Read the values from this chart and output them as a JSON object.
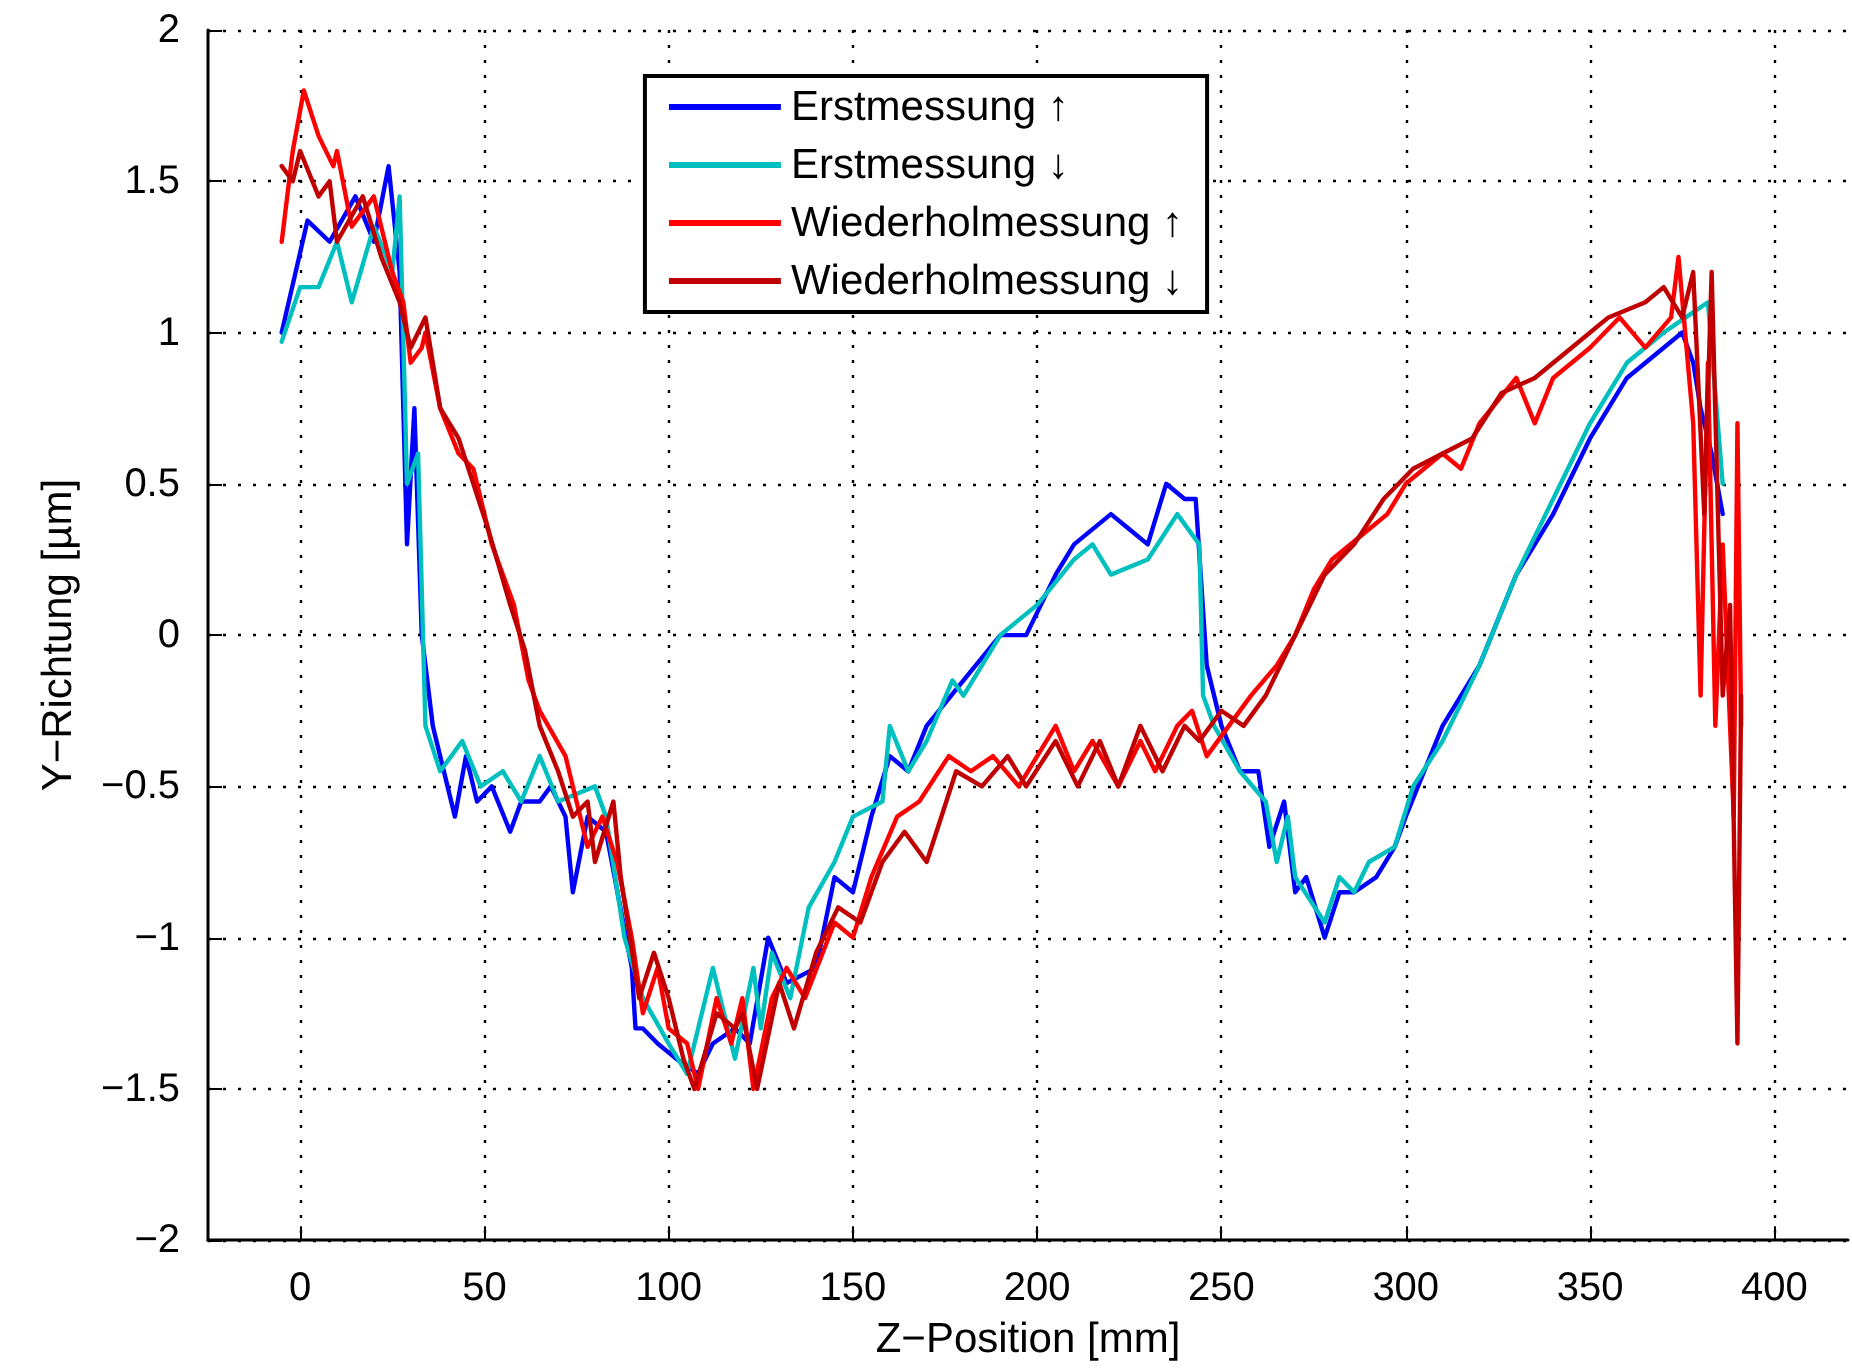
{
  "chart_data": {
    "type": "line",
    "xlabel": "Z−Position [mm]",
    "ylabel": "Y−Richtung [µm]",
    "xlim": [
      -25,
      420
    ],
    "xticks": [
      0,
      50,
      100,
      150,
      200,
      250,
      300,
      350,
      400
    ],
    "ylim": [
      -2,
      2
    ],
    "yticks": [
      {
        "value": -2,
        "label": "−2"
      },
      {
        "value": -1.5,
        "label": "−1.5"
      },
      {
        "value": -1,
        "label": "−1"
      },
      {
        "value": -0.5,
        "label": "−0.5"
      },
      0,
      0.5,
      1,
      1.5,
      2
    ],
    "grid": true,
    "legend": "top",
    "line_style": "solid",
    "marker": "none",
    "series": [
      {
        "name": "Erstmessung ↑",
        "color": "#0000ff",
        "x": [
          -5,
          2,
          8,
          15,
          20,
          24,
          27,
          29,
          31,
          33,
          36,
          40,
          42,
          45,
          48,
          52,
          57,
          60,
          65,
          68,
          72,
          74,
          78,
          83,
          90,
          91,
          93,
          97,
          102,
          108,
          112,
          118,
          122,
          127,
          132,
          140,
          145,
          150,
          155,
          160,
          165,
          170,
          180,
          190,
          197,
          205,
          210,
          220,
          225,
          230,
          235,
          240,
          243,
          246,
          248,
          250,
          255,
          260,
          263,
          267,
          270,
          273,
          278,
          282,
          286,
          292,
          297,
          300,
          305,
          310,
          320,
          330,
          340,
          350,
          360,
          370,
          375,
          378,
          380,
          383,
          386
        ],
        "values": [
          1.0,
          1.37,
          1.3,
          1.45,
          1.3,
          1.55,
          1.2,
          0.3,
          0.75,
          0.0,
          -0.3,
          -0.5,
          -0.6,
          -0.4,
          -0.55,
          -0.5,
          -0.65,
          -0.55,
          -0.55,
          -0.5,
          -0.6,
          -0.85,
          -0.6,
          -0.65,
          -1.1,
          -1.3,
          -1.3,
          -1.35,
          -1.4,
          -1.45,
          -1.35,
          -1.3,
          -1.35,
          -1.0,
          -1.15,
          -1.1,
          -0.8,
          -0.85,
          -0.6,
          -0.4,
          -0.45,
          -0.3,
          -0.15,
          0.0,
          0.0,
          0.2,
          0.3,
          0.4,
          0.35,
          0.3,
          0.5,
          0.45,
          0.45,
          -0.1,
          -0.2,
          -0.3,
          -0.45,
          -0.45,
          -0.7,
          -0.55,
          -0.85,
          -0.8,
          -1.0,
          -0.85,
          -0.85,
          -0.8,
          -0.7,
          -0.6,
          -0.45,
          -0.3,
          -0.1,
          0.2,
          0.4,
          0.65,
          0.85,
          0.95,
          1.0,
          0.9,
          0.75,
          0.6,
          0.4
        ]
      },
      {
        "name": "Erstmessung ↓",
        "color": "#00bfbf",
        "x": [
          -5,
          0,
          5,
          10,
          14,
          20,
          25,
          27,
          29,
          32,
          34,
          38,
          44,
          49,
          55,
          60,
          65,
          70,
          80,
          83,
          88,
          93,
          100,
          105,
          108,
          112,
          118,
          123,
          125,
          128,
          133,
          138,
          145,
          150,
          158,
          160,
          165,
          170,
          177,
          180,
          190,
          200,
          210,
          215,
          220,
          230,
          238,
          244,
          245,
          248,
          255,
          262,
          265,
          268,
          270,
          278,
          282,
          286,
          290,
          297,
          302,
          310,
          320,
          330,
          340,
          350,
          360,
          370,
          376,
          382,
          384,
          386
        ],
        "values": [
          0.97,
          1.15,
          1.15,
          1.3,
          1.1,
          1.35,
          1.2,
          1.45,
          0.5,
          0.6,
          -0.3,
          -0.45,
          -0.35,
          -0.5,
          -0.45,
          -0.55,
          -0.4,
          -0.55,
          -0.5,
          -0.6,
          -1.0,
          -1.2,
          -1.35,
          -1.45,
          -1.3,
          -1.1,
          -1.4,
          -1.1,
          -1.3,
          -1.05,
          -1.2,
          -0.9,
          -0.75,
          -0.6,
          -0.55,
          -0.3,
          -0.45,
          -0.35,
          -0.15,
          -0.2,
          0.0,
          0.1,
          0.25,
          0.3,
          0.2,
          0.25,
          0.4,
          0.3,
          -0.2,
          -0.3,
          -0.45,
          -0.55,
          -0.75,
          -0.6,
          -0.8,
          -0.95,
          -0.8,
          -0.85,
          -0.75,
          -0.7,
          -0.5,
          -0.35,
          -0.1,
          0.2,
          0.45,
          0.7,
          0.9,
          1.0,
          1.05,
          1.1,
          0.8,
          0.5
        ]
      },
      {
        "name": "Wiederholmessung ↑",
        "color": "#ff0000",
        "x": [
          -5,
          -2,
          1,
          5,
          9,
          10,
          14,
          20,
          23,
          25,
          28,
          30,
          33,
          34,
          38,
          43,
          47,
          52,
          58,
          62,
          65,
          72,
          75,
          78,
          82,
          86,
          90,
          93,
          97,
          100,
          105,
          108,
          113,
          117,
          120,
          123,
          128,
          132,
          137,
          145,
          150,
          155,
          162,
          168,
          176,
          182,
          188,
          195,
          205,
          210,
          215,
          222,
          228,
          232,
          238,
          242,
          246,
          252,
          258,
          265,
          270,
          275,
          280,
          290,
          295,
          300,
          310,
          315,
          320,
          330,
          335,
          340,
          350,
          358,
          365,
          372,
          374,
          378,
          380,
          382,
          384,
          386,
          389,
          390,
          391
        ],
        "values": [
          1.3,
          1.6,
          1.8,
          1.65,
          1.55,
          1.6,
          1.35,
          1.45,
          1.3,
          1.2,
          1.1,
          0.9,
          0.95,
          1.0,
          0.75,
          0.6,
          0.55,
          0.3,
          0.1,
          -0.15,
          -0.25,
          -0.4,
          -0.55,
          -0.7,
          -0.6,
          -0.75,
          -1.0,
          -1.25,
          -1.1,
          -1.3,
          -1.35,
          -1.5,
          -1.2,
          -1.35,
          -1.2,
          -1.5,
          -1.2,
          -1.1,
          -1.2,
          -0.95,
          -1.0,
          -0.8,
          -0.6,
          -0.55,
          -0.4,
          -0.45,
          -0.4,
          -0.5,
          -0.3,
          -0.45,
          -0.35,
          -0.5,
          -0.35,
          -0.45,
          -0.3,
          -0.25,
          -0.4,
          -0.3,
          -0.2,
          -0.1,
          0.0,
          0.15,
          0.25,
          0.35,
          0.4,
          0.5,
          0.6,
          0.55,
          0.7,
          0.85,
          0.7,
          0.85,
          0.95,
          1.05,
          0.95,
          1.05,
          1.25,
          0.7,
          -0.2,
          0.9,
          -0.3,
          0.3,
          -0.6,
          0.7,
          -0.3
        ]
      },
      {
        "name": "Wiederholmessung ↓",
        "color": "#c00000",
        "x": [
          -5,
          -2,
          0,
          5,
          8,
          10,
          17,
          22,
          27,
          30,
          34,
          38,
          43,
          47,
          51,
          57,
          61,
          65,
          70,
          74,
          78,
          80,
          85,
          87,
          92,
          96,
          100,
          104,
          107,
          113,
          118,
          120,
          124,
          130,
          134,
          140,
          146,
          152,
          158,
          164,
          170,
          178,
          185,
          192,
          197,
          205,
          211,
          217,
          222,
          228,
          234,
          240,
          244,
          250,
          256,
          262,
          268,
          272,
          278,
          286,
          294,
          302,
          310,
          318,
          326,
          335,
          345,
          355,
          365,
          370,
          375,
          378,
          381,
          383,
          386,
          388,
          390,
          391
        ],
        "values": [
          1.55,
          1.5,
          1.6,
          1.45,
          1.5,
          1.3,
          1.45,
          1.25,
          1.1,
          0.95,
          1.05,
          0.75,
          0.65,
          0.5,
          0.35,
          0.1,
          -0.05,
          -0.3,
          -0.45,
          -0.6,
          -0.55,
          -0.75,
          -0.55,
          -0.8,
          -1.2,
          -1.05,
          -1.2,
          -1.4,
          -1.5,
          -1.25,
          -1.3,
          -1.25,
          -1.5,
          -1.15,
          -1.3,
          -1.05,
          -0.9,
          -0.95,
          -0.75,
          -0.65,
          -0.75,
          -0.45,
          -0.5,
          -0.4,
          -0.5,
          -0.35,
          -0.5,
          -0.35,
          -0.5,
          -0.3,
          -0.45,
          -0.3,
          -0.35,
          -0.25,
          -0.3,
          -0.2,
          -0.05,
          0.05,
          0.2,
          0.3,
          0.45,
          0.55,
          0.6,
          0.65,
          0.8,
          0.85,
          0.95,
          1.05,
          1.1,
          1.15,
          1.05,
          1.2,
          0.4,
          1.2,
          -0.2,
          0.1,
          -1.35,
          -0.2
        ]
      }
    ]
  }
}
